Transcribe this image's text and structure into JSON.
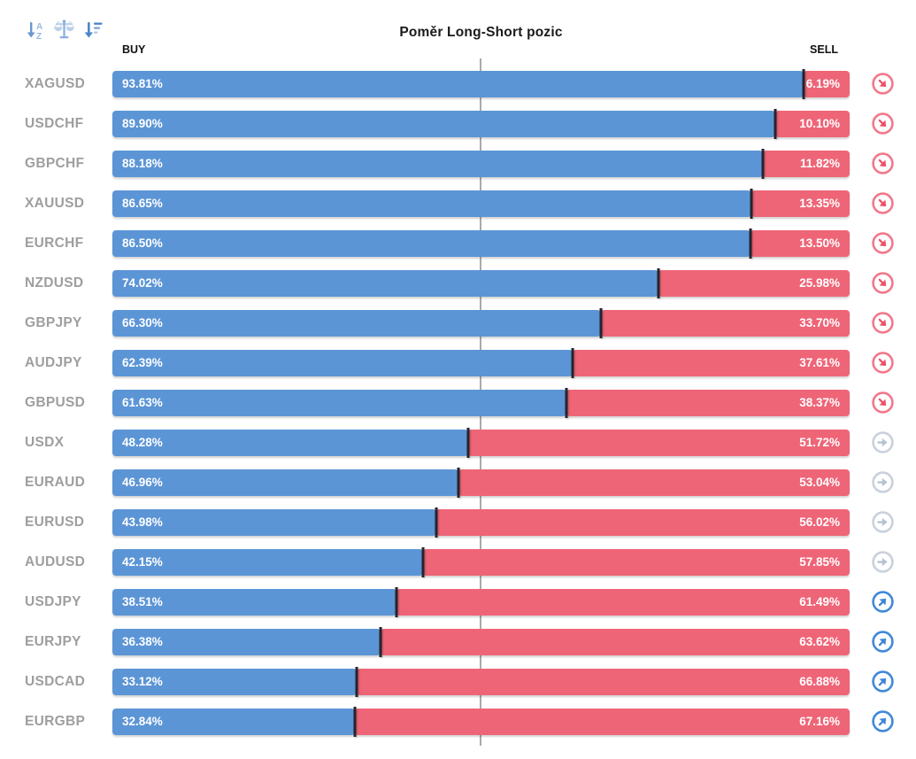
{
  "chart_data": {
    "type": "bar",
    "orientation": "horizontal",
    "stacked": true,
    "title": "Poměr Long-Short pozic",
    "categories": [
      "XAGUSD",
      "USDCHF",
      "GBPCHF",
      "XAUUSD",
      "EURCHF",
      "NZDUSD",
      "GBPJPY",
      "AUDJPY",
      "GBPUSD",
      "USDX",
      "EURAUD",
      "EURUSD",
      "AUDUSD",
      "USDJPY",
      "EURJPY",
      "USDCAD",
      "EURGBP"
    ],
    "series": [
      {
        "name": "BUY",
        "color": "#5b95d6",
        "values": [
          93.81,
          89.9,
          88.18,
          86.65,
          86.5,
          74.02,
          66.3,
          62.39,
          61.63,
          48.28,
          46.96,
          43.98,
          42.15,
          38.51,
          36.38,
          33.12,
          32.84
        ]
      },
      {
        "name": "SELL",
        "color": "#ee6577",
        "values": [
          6.19,
          10.1,
          11.82,
          13.35,
          13.5,
          25.98,
          33.7,
          37.61,
          38.37,
          51.72,
          53.04,
          56.02,
          57.85,
          61.49,
          63.62,
          66.88,
          67.16
        ]
      }
    ],
    "value_format": "0.00%",
    "xlim": [
      0,
      100
    ],
    "center_gridline_at": 50,
    "legend_position": "top",
    "signals": [
      "down",
      "down",
      "down",
      "down",
      "down",
      "down",
      "down",
      "down",
      "down",
      "flat",
      "flat",
      "flat",
      "flat",
      "up",
      "up",
      "up",
      "up"
    ],
    "signal_colors": {
      "down": "#ec5166",
      "flat": "#b7c2d0",
      "up": "#3d86d6"
    }
  },
  "toolbar": {
    "icons": [
      {
        "name": "sort-alphabetical-icon"
      },
      {
        "name": "balance-scale-icon"
      },
      {
        "name": "sort-amount-desc-icon"
      }
    ]
  },
  "styles": {
    "divider_color": "#25242e",
    "gridline_color": "#aaaaaa",
    "category_label_color": "#9e9e9e"
  }
}
